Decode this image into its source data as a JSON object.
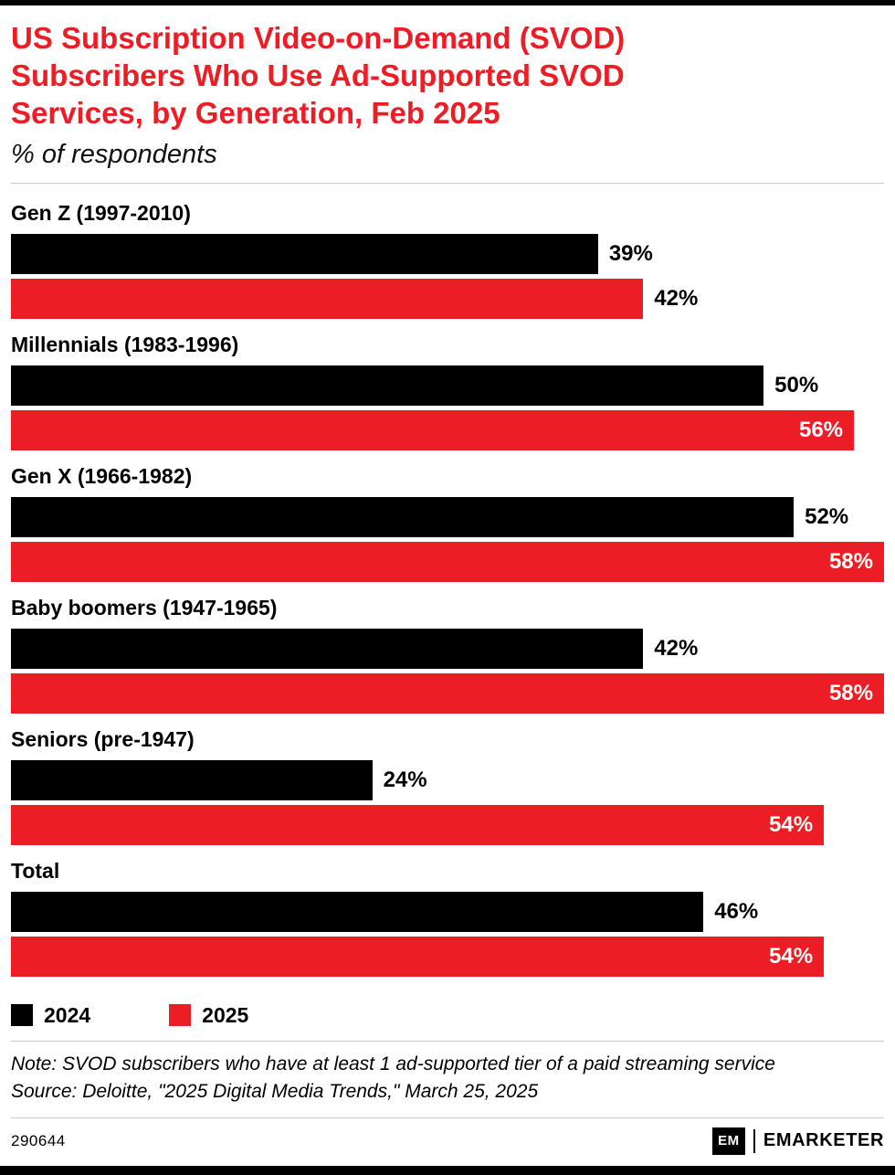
{
  "colors": {
    "accent_red": "#EC1D25",
    "bar_2024": "#000000",
    "bar_2025": "#EC1D25",
    "divider": "#c9c9c9"
  },
  "header": {
    "title": "US Subscription Video-on-Demand (SVOD) Subscribers Who Use Ad-Supported SVOD Services, by Generation, Feb 2025",
    "subtitle": "% of respondents"
  },
  "chart_data": {
    "type": "bar",
    "orientation": "horizontal",
    "title": "US Subscription Video-on-Demand (SVOD) Subscribers Who Use Ad-Supported SVOD Services, by Generation, Feb 2025",
    "unit": "% of respondents",
    "categories": [
      "Gen Z (1997-2010)",
      "Millennials (1983-1996)",
      "Gen X (1966-1982)",
      "Baby boomers (1947-1965)",
      "Seniors (pre-1947)",
      "Total"
    ],
    "series": [
      {
        "name": "2024",
        "color": "#000000",
        "values": [
          39,
          50,
          52,
          42,
          24,
          46
        ]
      },
      {
        "name": "2025",
        "color": "#EC1D25",
        "values": [
          42,
          56,
          58,
          58,
          54,
          54
        ]
      }
    ],
    "value_suffix": "%",
    "axis_max": 58,
    "grid": false,
    "legend_position": "bottom"
  },
  "legend": {
    "items": [
      {
        "label": "2024",
        "color": "#000000"
      },
      {
        "label": "2025",
        "color": "#EC1D25"
      }
    ]
  },
  "notes": {
    "note": "Note: SVOD subscribers who have at least 1 ad-supported tier of a paid streaming service",
    "source": "Source: Deloitte, \"2025 Digital Media Trends,\" March 25, 2025"
  },
  "footer": {
    "chart_id": "290644",
    "logo_mark": "EM",
    "brand": "EMARKETER"
  }
}
